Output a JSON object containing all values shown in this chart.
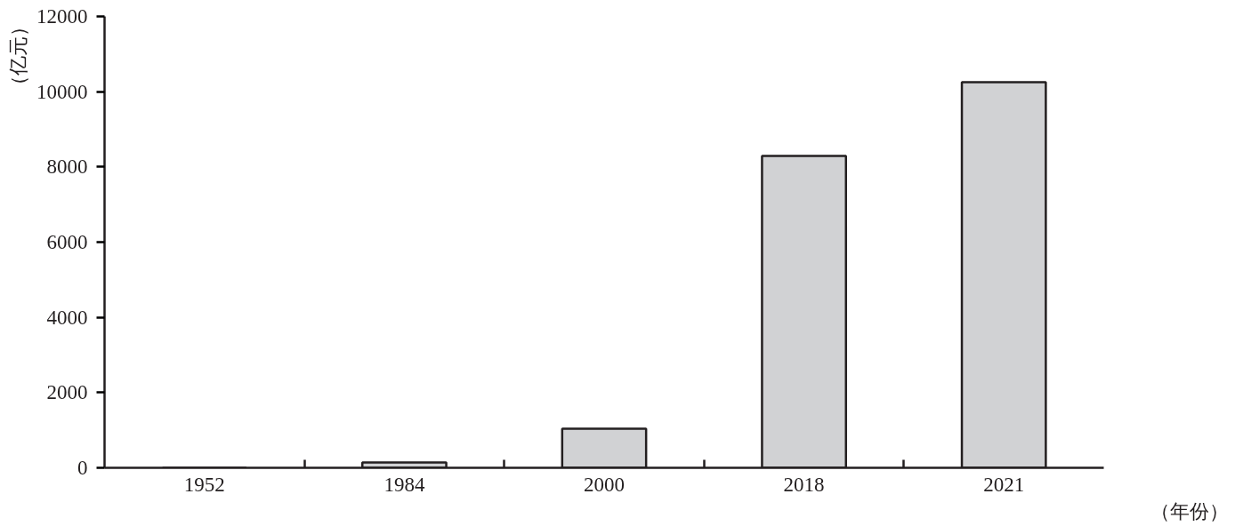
{
  "chart_data": {
    "type": "bar",
    "ylabel": "（亿元）",
    "xlabel": "（年份）",
    "categories": [
      "1952",
      "1984",
      "2000",
      "2018",
      "2021"
    ],
    "values": [
      0,
      140,
      1040,
      8290,
      10250
    ],
    "color": "#d1d2d4",
    "ylim": [
      0,
      12000
    ],
    "yticks": [
      0,
      2000,
      4000,
      6000,
      8000,
      10000,
      12000
    ],
    "grid": false
  }
}
